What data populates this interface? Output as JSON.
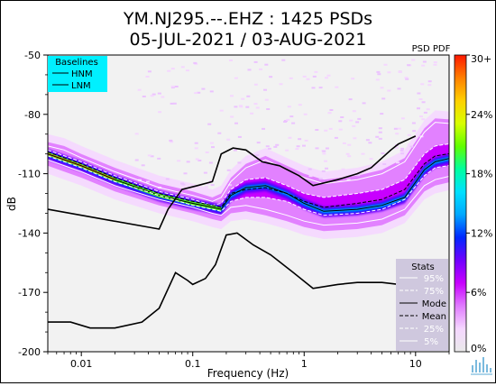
{
  "chart_data": {
    "type": "heatmap",
    "title": [
      "YM.NJ295.--.EHZ : 1425 PSDs",
      "05-JUL-2021 / 03-AUG-2021"
    ],
    "xlabel": "Frequency (Hz)",
    "ylabel": "dB",
    "x_scale": "log",
    "xlim": [
      0.005,
      20
    ],
    "ylim": [
      -200,
      -50
    ],
    "grid": false,
    "x_tick_labels": [
      {
        "value": 0.01,
        "label": "0.01"
      },
      {
        "value": 0.1,
        "label": "0.1"
      },
      {
        "value": 1,
        "label": "1"
      },
      {
        "value": 10,
        "label": "10"
      }
    ],
    "y_tick_labels": [
      {
        "value": -50,
        "label": "-50"
      },
      {
        "value": -80,
        "label": "-80"
      },
      {
        "value": -110,
        "label": "-110"
      },
      {
        "value": -140,
        "label": "-140"
      },
      {
        "value": -170,
        "label": "-170"
      },
      {
        "value": -200,
        "label": "-200"
      }
    ],
    "baselines_legend": {
      "title": "Baselines",
      "entries": [
        "HNM",
        "LNM"
      ],
      "placement": "top-left",
      "background": "#00f0ff"
    },
    "baselines": [
      {
        "name": "HNM",
        "points": [
          [
            0.005,
            -128
          ],
          [
            0.01,
            -131
          ],
          [
            0.05,
            -138
          ],
          [
            0.06,
            -128
          ],
          [
            0.08,
            -118
          ],
          [
            0.11,
            -116
          ],
          [
            0.15,
            -114
          ],
          [
            0.18,
            -100
          ],
          [
            0.23,
            -97
          ],
          [
            0.3,
            -98
          ],
          [
            0.42,
            -104
          ],
          [
            0.6,
            -106
          ],
          [
            0.9,
            -111
          ],
          [
            1.2,
            -116
          ],
          [
            2,
            -113
          ],
          [
            3,
            -110
          ],
          [
            4,
            -107
          ],
          [
            6,
            -98
          ],
          [
            7,
            -95
          ],
          [
            10,
            -91
          ]
        ]
      },
      {
        "name": "LNM",
        "points": [
          [
            0.005,
            -185
          ],
          [
            0.008,
            -185
          ],
          [
            0.012,
            -188
          ],
          [
            0.02,
            -188
          ],
          [
            0.035,
            -185
          ],
          [
            0.05,
            -178
          ],
          [
            0.07,
            -160
          ],
          [
            0.09,
            -164
          ],
          [
            0.1,
            -166
          ],
          [
            0.13,
            -163
          ],
          [
            0.16,
            -156
          ],
          [
            0.2,
            -141
          ],
          [
            0.25,
            -140
          ],
          [
            0.35,
            -146
          ],
          [
            0.5,
            -151
          ],
          [
            0.8,
            -160
          ],
          [
            1.2,
            -168
          ],
          [
            2,
            -166
          ],
          [
            3,
            -165
          ],
          [
            5,
            -165
          ],
          [
            10,
            -167
          ]
        ]
      }
    ],
    "stats_legend": {
      "title": "Stats",
      "entries": [
        "95%",
        "75%",
        "Mode",
        "Mean",
        "25%",
        "5%"
      ],
      "placement": "bottom-right",
      "background": "#cfc8de"
    },
    "stats": [
      {
        "name": "95%",
        "points": [
          [
            0.005,
            -96
          ],
          [
            0.007,
            -98
          ],
          [
            0.01,
            -102
          ],
          [
            0.02,
            -109
          ],
          [
            0.05,
            -117
          ],
          [
            0.1,
            -121
          ],
          [
            0.15,
            -124
          ],
          [
            0.18,
            -122
          ],
          [
            0.22,
            -114
          ],
          [
            0.3,
            -107
          ],
          [
            0.45,
            -103
          ],
          [
            0.7,
            -108
          ],
          [
            1,
            -112
          ],
          [
            1.5,
            -115
          ],
          [
            3,
            -113
          ],
          [
            5,
            -110
          ],
          [
            8,
            -104
          ],
          [
            12,
            -89
          ],
          [
            15,
            -84
          ],
          [
            25,
            -85
          ],
          [
            40,
            -90
          ],
          [
            55,
            -107
          ]
        ]
      },
      {
        "name": "75%",
        "points": [
          [
            0.005,
            -98
          ],
          [
            0.01,
            -104
          ],
          [
            0.02,
            -111
          ],
          [
            0.05,
            -119
          ],
          [
            0.1,
            -123
          ],
          [
            0.15,
            -126
          ],
          [
            0.18,
            -125
          ],
          [
            0.22,
            -118
          ],
          [
            0.3,
            -113
          ],
          [
            0.45,
            -112
          ],
          [
            0.7,
            -116
          ],
          [
            1,
            -120
          ],
          [
            1.5,
            -122
          ],
          [
            3,
            -120
          ],
          [
            5,
            -118
          ],
          [
            8,
            -113
          ],
          [
            12,
            -100
          ],
          [
            15,
            -96
          ],
          [
            25,
            -94
          ],
          [
            40,
            -97
          ],
          [
            55,
            -112
          ]
        ]
      },
      {
        "name": "Mode",
        "points": [
          [
            0.005,
            -100
          ],
          [
            0.01,
            -106
          ],
          [
            0.02,
            -113
          ],
          [
            0.05,
            -121
          ],
          [
            0.1,
            -125
          ],
          [
            0.15,
            -127
          ],
          [
            0.18,
            -128
          ],
          [
            0.22,
            -121
          ],
          [
            0.3,
            -117
          ],
          [
            0.45,
            -116
          ],
          [
            0.7,
            -120
          ],
          [
            1,
            -125
          ],
          [
            1.5,
            -129
          ],
          [
            3,
            -128
          ],
          [
            5,
            -126
          ],
          [
            8,
            -122
          ],
          [
            12,
            -108
          ],
          [
            15,
            -104
          ],
          [
            25,
            -101
          ],
          [
            40,
            -102
          ],
          [
            55,
            -126
          ]
        ]
      },
      {
        "name": "Mean",
        "points": [
          [
            0.005,
            -99
          ],
          [
            0.01,
            -105
          ],
          [
            0.02,
            -112
          ],
          [
            0.05,
            -120
          ],
          [
            0.1,
            -124
          ],
          [
            0.15,
            -126
          ],
          [
            0.18,
            -127
          ],
          [
            0.22,
            -120
          ],
          [
            0.3,
            -118
          ],
          [
            0.45,
            -117
          ],
          [
            0.7,
            -120
          ],
          [
            1,
            -124
          ],
          [
            1.5,
            -127
          ],
          [
            3,
            -125
          ],
          [
            5,
            -123
          ],
          [
            8,
            -118
          ],
          [
            12,
            -105
          ],
          [
            15,
            -101
          ],
          [
            25,
            -99
          ],
          [
            40,
            -101
          ],
          [
            55,
            -118
          ]
        ]
      },
      {
        "name": "25%",
        "points": [
          [
            0.005,
            -101
          ],
          [
            0.01,
            -107
          ],
          [
            0.02,
            -114
          ],
          [
            0.05,
            -121
          ],
          [
            0.1,
            -126
          ],
          [
            0.15,
            -128
          ],
          [
            0.18,
            -129
          ],
          [
            0.22,
            -124
          ],
          [
            0.3,
            -122
          ],
          [
            0.45,
            -122
          ],
          [
            0.7,
            -124
          ],
          [
            1,
            -128
          ],
          [
            1.5,
            -131
          ],
          [
            3,
            -130
          ],
          [
            5,
            -128
          ],
          [
            8,
            -123
          ],
          [
            12,
            -111
          ],
          [
            15,
            -107
          ],
          [
            25,
            -105
          ],
          [
            40,
            -106
          ],
          [
            55,
            -130
          ]
        ]
      },
      {
        "name": "5%",
        "points": [
          [
            0.005,
            -103
          ],
          [
            0.01,
            -109
          ],
          [
            0.02,
            -116
          ],
          [
            0.05,
            -123
          ],
          [
            0.1,
            -127
          ],
          [
            0.15,
            -130
          ],
          [
            0.18,
            -131
          ],
          [
            0.22,
            -127
          ],
          [
            0.3,
            -126
          ],
          [
            0.45,
            -128
          ],
          [
            0.7,
            -131
          ],
          [
            1,
            -134
          ],
          [
            1.5,
            -136
          ],
          [
            3,
            -135
          ],
          [
            5,
            -133
          ],
          [
            8,
            -128
          ],
          [
            12,
            -116
          ],
          [
            15,
            -113
          ],
          [
            25,
            -110
          ],
          [
            40,
            -112
          ],
          [
            55,
            -135
          ]
        ]
      }
    ],
    "colorbar": {
      "title": "PSD PDF",
      "range": [
        0,
        30
      ],
      "tick_labels": [
        "30+",
        "24%",
        "18%",
        "12%",
        "6%",
        "0%"
      ],
      "tick_values": [
        30,
        24,
        18,
        12,
        6,
        0
      ],
      "colors": [
        "#e9e9e9",
        "#f5d7ff",
        "#e07cff",
        "#c800ff",
        "#7000ff",
        "#0028ff",
        "#00a8ff",
        "#00e0ff",
        "#00ffa0",
        "#60ff00",
        "#d8ff00",
        "#ffd000",
        "#ff8000",
        "#ff1800"
      ]
    },
    "colors": {
      "mode_line": "#000000",
      "mean_line": "#000000",
      "percentile_lines": "#ffffff",
      "plot_background": "#f2f2f2"
    }
  }
}
